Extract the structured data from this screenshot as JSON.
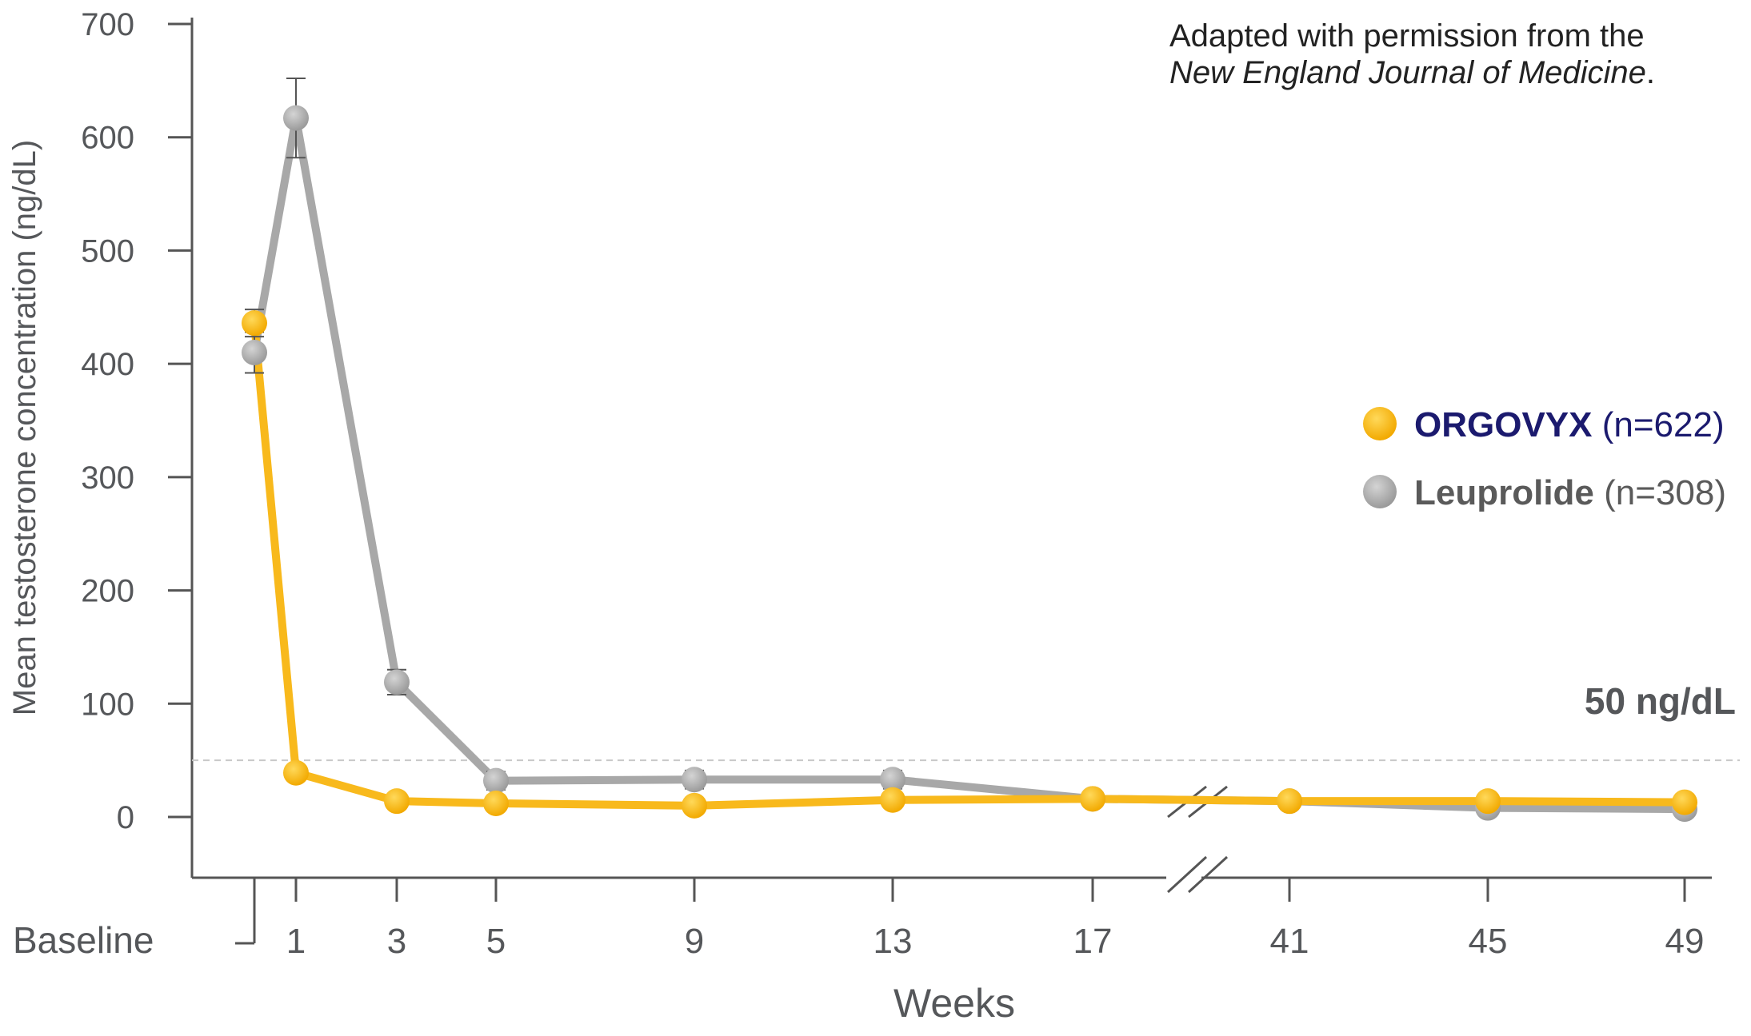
{
  "chart_data": {
    "type": "line",
    "xlabel": "Weeks",
    "ylabel": "Mean testosterone concentration (ng/dL)",
    "ylim": [
      0,
      700
    ],
    "yticks": [
      "700",
      "600",
      "500",
      "400",
      "300",
      "200",
      "100",
      "0"
    ],
    "categories": [
      "Baseline",
      "1",
      "3",
      "5",
      "9",
      "13",
      "17",
      "41",
      "45",
      "49"
    ],
    "axis_break_between": [
      "17",
      "41"
    ],
    "threshold": {
      "value": 50,
      "label": "50 ng/dL"
    },
    "grid": false,
    "legend_position": "right",
    "series": [
      {
        "name": "ORGOVYX",
        "n_label": "(n=622)",
        "color": "#f8b91c",
        "values": [
          436,
          39,
          14,
          12,
          10,
          15,
          16,
          14,
          14,
          13
        ],
        "error": [
          12,
          0,
          0,
          0,
          0,
          0,
          0,
          0,
          0,
          0
        ]
      },
      {
        "name": "Leuprolide",
        "n_label": "(n=308)",
        "color": "#a8a8a8",
        "values": [
          410,
          617,
          119,
          32,
          33,
          33,
          16,
          14,
          8,
          7
        ],
        "error": [
          18,
          35,
          11,
          8,
          8,
          8,
          0,
          0,
          0,
          0
        ]
      }
    ]
  },
  "note": {
    "line1": "Adapted with permission from the",
    "line2": "New England Journal of Medicine",
    "line2_suffix": "."
  },
  "colors": {
    "axis": "#555555",
    "legend_orgovyx_text": "#1b1a6e",
    "legend_leuprolide_text": "#5a5a5a",
    "threshold_line": "#c8c8c8"
  }
}
